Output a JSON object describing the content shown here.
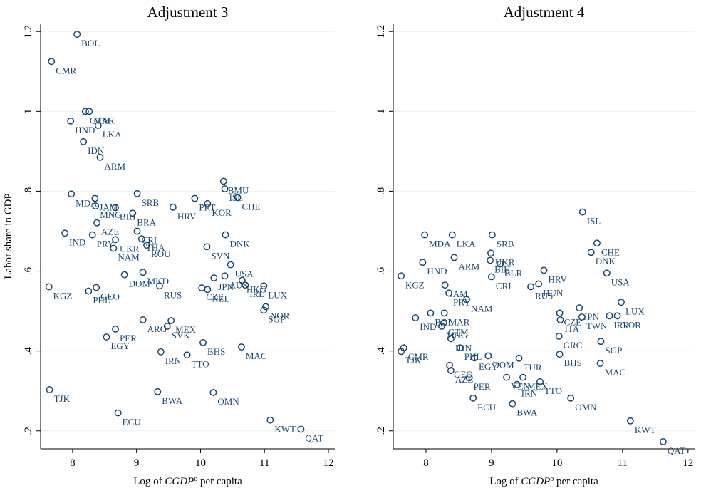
{
  "chart_data": [
    {
      "type": "scatter",
      "title": "Adjustment 3",
      "y_label": "Labor share in GDP",
      "x_label": [
        "Log of ",
        "CGDP",
        "o",
        " per capita"
      ],
      "xlim": [
        7.5,
        12.1
      ],
      "ylim": [
        0.155,
        1.22
      ],
      "xticks": [
        8,
        9,
        10,
        11,
        12
      ],
      "yticks": [
        {
          "value": 0.2,
          "label": ".2"
        },
        {
          "value": 0.4,
          "label": ".4"
        },
        {
          "value": 0.6,
          "label": ".6"
        },
        {
          "value": 0.8,
          "label": ".8"
        },
        1,
        1.2
      ],
      "grid": true,
      "color": "#1a476f",
      "point_labels": [
        "BOL",
        "CMR",
        "GTM",
        "MAR",
        "HND",
        "LKA",
        "IDN",
        "ARM",
        "MDA",
        "JAM",
        "MNG",
        "BIH",
        "SRB",
        "BRA",
        "HRV",
        "PRT",
        "KOR",
        "BMU",
        "ISL",
        "CHE",
        "AZE",
        "CRI",
        "IND",
        "PRY",
        "UKR",
        "THA",
        "ROU",
        "NAM",
        "SVN",
        "DNK",
        "USA",
        "AUS",
        "JPN",
        "NZL",
        "CZE",
        "HKG",
        "IRL",
        "LUX",
        "NOR",
        "SGP",
        "KGZ",
        "PHL",
        "GEO",
        "DOM",
        "MKD",
        "RUS",
        "SVK",
        "MEX",
        "ARG",
        "PER",
        "EGY",
        "IRN",
        "TTO",
        "BHS",
        "MAC",
        "TJK",
        "ECU",
        "BWA",
        "OMN",
        "KWT",
        "QAT"
      ],
      "x": [
        8.07,
        7.67,
        8.2,
        8.26,
        7.97,
        8.4,
        8.17,
        8.43,
        7.98,
        8.35,
        8.36,
        8.67,
        9.01,
        8.94,
        9.57,
        9.91,
        10.11,
        10.36,
        10.38,
        10.58,
        8.38,
        9.01,
        7.88,
        8.31,
        8.67,
        9.08,
        9.16,
        8.64,
        10.1,
        10.39,
        10.47,
        10.38,
        10.21,
        10.11,
        10.02,
        10.65,
        10.7,
        10.99,
        11.02,
        10.99,
        7.63,
        8.25,
        8.37,
        8.81,
        9.1,
        9.36,
        9.48,
        9.54,
        9.1,
        8.67,
        8.53,
        9.38,
        9.79,
        10.04,
        10.64,
        7.64,
        8.71,
        9.33,
        10.2,
        11.09,
        11.57
      ],
      "values": [
        1.193,
        1.125,
        1.0,
        1.0,
        0.976,
        0.965,
        0.924,
        0.885,
        0.793,
        0.782,
        0.763,
        0.759,
        0.794,
        0.745,
        0.76,
        0.782,
        0.769,
        0.825,
        0.806,
        0.784,
        0.721,
        0.7,
        0.695,
        0.691,
        0.679,
        0.681,
        0.665,
        0.657,
        0.661,
        0.691,
        0.616,
        0.588,
        0.583,
        0.554,
        0.558,
        0.577,
        0.565,
        0.563,
        0.511,
        0.502,
        0.561,
        0.55,
        0.559,
        0.591,
        0.597,
        0.563,
        0.462,
        0.476,
        0.478,
        0.455,
        0.435,
        0.398,
        0.39,
        0.421,
        0.41,
        0.303,
        0.245,
        0.298,
        0.296,
        0.227,
        0.204
      ]
    },
    {
      "type": "scatter",
      "title": "Adjustment 4",
      "x_label": [
        "Log of ",
        "CGDP",
        "o",
        " per capita"
      ],
      "xlim": [
        7.5,
        12.1
      ],
      "ylim": [
        0.155,
        1.22
      ],
      "xticks": [
        8,
        9,
        10,
        11,
        12
      ],
      "yticks": [
        {
          "value": 0.2,
          "label": ".2"
        },
        {
          "value": 0.4,
          "label": ".4"
        },
        {
          "value": 0.6,
          "label": ".6"
        },
        {
          "value": 0.8,
          "label": ".8"
        },
        1,
        1.2
      ],
      "grid": true,
      "color": "#1a476f",
      "point_labels": [
        "ISL",
        "CHE",
        "DNK",
        "USA",
        "LUX",
        "IRL",
        "NOR",
        "SGP",
        "MAC",
        "KWT",
        "QAT",
        "TWN",
        "JPN",
        "ITA",
        "CZE",
        "HRV",
        "HUN",
        "RUS",
        "BLR",
        "CRI",
        "UKR",
        "BIH",
        "SRB",
        "LKA",
        "MDA",
        "HND",
        "ARM",
        "KGZ",
        "PRY",
        "NAM",
        "JAM",
        "BOL",
        "MAR",
        "IND",
        "MNG",
        "GTM",
        "IDN",
        "TJK",
        "CMR",
        "PHL",
        "EGY",
        "GEO",
        "AZE",
        "PER",
        "ECU",
        "DOM",
        "TUR",
        "VEN",
        "MEX",
        "IRN",
        "BWA",
        "TTO",
        "OMN",
        "BHS",
        "GRC"
      ],
      "x": [
        10.39,
        10.61,
        10.52,
        10.76,
        10.98,
        10.8,
        10.92,
        10.67,
        10.66,
        11.12,
        11.62,
        10.38,
        10.34,
        10.05,
        10.04,
        9.8,
        9.72,
        9.6,
        9.13,
        9.0,
        8.99,
        8.98,
        9.01,
        8.4,
        7.98,
        7.95,
        8.43,
        7.62,
        8.35,
        8.62,
        8.29,
        8.07,
        8.28,
        7.84,
        8.24,
        8.27,
        8.38,
        7.62,
        7.66,
        8.52,
        8.74,
        8.36,
        8.38,
        8.66,
        8.72,
        8.95,
        9.42,
        9.23,
        9.48,
        9.39,
        9.32,
        9.74,
        10.21,
        10.04,
        10.03
      ],
      "values": [
        0.748,
        0.67,
        0.647,
        0.595,
        0.522,
        0.488,
        0.488,
        0.424,
        0.369,
        0.225,
        0.173,
        0.485,
        0.508,
        0.478,
        0.495,
        0.602,
        0.568,
        0.561,
        0.618,
        0.586,
        0.645,
        0.627,
        0.691,
        0.691,
        0.691,
        0.622,
        0.634,
        0.588,
        0.545,
        0.529,
        0.565,
        0.495,
        0.495,
        0.483,
        0.462,
        0.47,
        0.431,
        0.399,
        0.408,
        0.408,
        0.383,
        0.364,
        0.351,
        0.333,
        0.282,
        0.388,
        0.382,
        0.334,
        0.334,
        0.316,
        0.268,
        0.323,
        0.282,
        0.392,
        0.437
      ]
    }
  ]
}
